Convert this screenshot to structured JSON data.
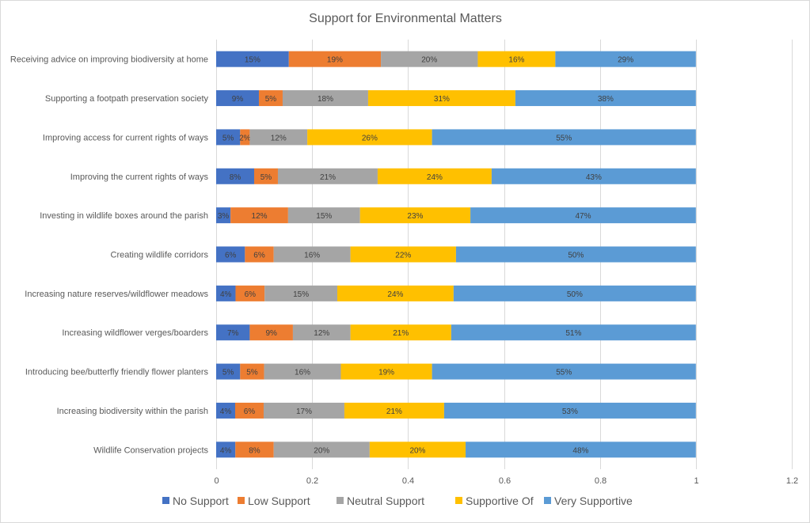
{
  "chart_data": {
    "type": "bar",
    "orientation": "horizontal",
    "stacked": true,
    "title": "Support for Environmental Matters",
    "xlabel": "",
    "ylabel": "",
    "xlim": [
      0,
      1.2
    ],
    "xticks": [
      "0",
      "0.2",
      "0.4",
      "0.6",
      "0.8",
      "1",
      "1.2"
    ],
    "grid": true,
    "legend_position": "bottom",
    "categories": [
      "Receiving advice on improving biodiversity at home",
      "Supporting a footpath preservation society",
      "Improving access for current rights of ways",
      "Improving the current rights of ways",
      "Investing in wildlife boxes around the parish",
      "Creating wildlife corridors",
      "Increasing nature reserves/wildflower meadows",
      "Increasing wildflower verges/boarders",
      "Introducing bee/butterfly friendly flower planters",
      "Increasing biodiversity within the parish",
      "Wildlife Conservation projects"
    ],
    "series": [
      {
        "name": "No Support",
        "color": "#4472C4",
        "values": [
          0.15,
          0.09,
          0.05,
          0.08,
          0.03,
          0.06,
          0.04,
          0.07,
          0.05,
          0.04,
          0.04
        ],
        "labels": [
          "15%",
          "9%",
          "5%",
          "8%",
          "3%",
          "6%",
          "4%",
          "7%",
          "5%",
          "4%",
          "4%"
        ]
      },
      {
        "name": "Low Support",
        "color": "#ED7D31",
        "values": [
          0.19,
          0.05,
          0.02,
          0.05,
          0.12,
          0.06,
          0.06,
          0.09,
          0.05,
          0.06,
          0.08
        ],
        "labels": [
          "19%",
          "5%",
          "2%",
          "5%",
          "12%",
          "6%",
          "6%",
          "9%",
          "5%",
          "6%",
          "8%"
        ]
      },
      {
        "name": "Neutral Support",
        "color": "#A5A5A5",
        "values": [
          0.2,
          0.18,
          0.12,
          0.21,
          0.15,
          0.16,
          0.15,
          0.12,
          0.16,
          0.17,
          0.2
        ],
        "labels": [
          "20%",
          "18%",
          "12%",
          "21%",
          "15%",
          "16%",
          "15%",
          "12%",
          "16%",
          "17%",
          "20%"
        ]
      },
      {
        "name": "Supportive Of",
        "color": "#FFC000",
        "values": [
          0.16,
          0.31,
          0.26,
          0.24,
          0.23,
          0.22,
          0.24,
          0.21,
          0.19,
          0.21,
          0.2
        ],
        "labels": [
          "16%",
          "31%",
          "26%",
          "24%",
          "23%",
          "22%",
          "24%",
          "21%",
          "19%",
          "21%",
          "20%"
        ]
      },
      {
        "name": "Very Supportive",
        "color": "#5B9BD5",
        "values": [
          0.29,
          0.38,
          0.55,
          0.43,
          0.47,
          0.5,
          0.5,
          0.51,
          0.55,
          0.53,
          0.48
        ],
        "labels": [
          "29%",
          "38%",
          "55%",
          "43%",
          "47%",
          "50%",
          "50%",
          "51%",
          "55%",
          "53%",
          "48%"
        ]
      }
    ]
  }
}
